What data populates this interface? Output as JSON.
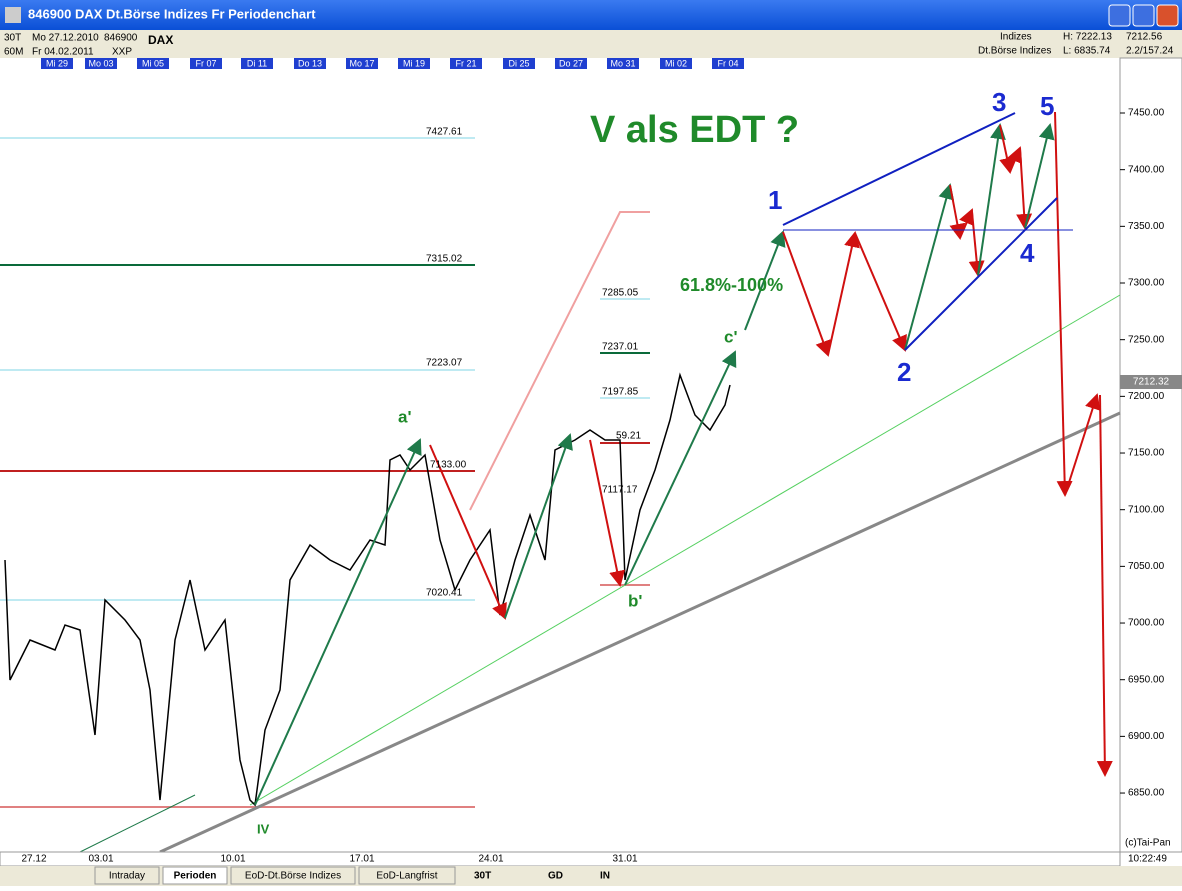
{
  "window": {
    "title": "846900 DAX Dt.Börse Indizes Fr Periodenchart"
  },
  "header": {
    "period1": "30T",
    "date1": "Mo 27.12.2010",
    "code": "846900",
    "name": "DAX",
    "period2": "60M",
    "date2": "Fr 04.02.2011",
    "exchange": "XXP",
    "group": "Indizes",
    "market": "Dt.Börse Indizes",
    "high": "H: 7222.13",
    "low": "L: 6835.74",
    "last": "7212.56",
    "change": "2.2/157.24"
  },
  "date_strip": [
    "Mi 29",
    "Mo 03",
    "Mi 05",
    "Fr 07",
    "Di 11",
    "Do 13",
    "Mo 17",
    "Mi 19",
    "Fr 21",
    "Di 25",
    "Do 27",
    "Mo 31",
    "Mi 02",
    "Fr 04"
  ],
  "price_axis": [
    "7450.00",
    "7400.00",
    "7350.00",
    "7300.00",
    "7250.00",
    "7200.00",
    "7150.00",
    "7100.00",
    "7050.00",
    "7000.00",
    "6950.00",
    "6900.00",
    "6850.00"
  ],
  "current_price": "7212.32",
  "levels": [
    "7427.61",
    "7315.02",
    "7223.07",
    "7133.00",
    "7020.41",
    "7285.05",
    "7237.01",
    "7197.85",
    "59.21",
    "7117.17"
  ],
  "annotations": {
    "title": "V als EDT ?",
    "fib": "61.8%-100%",
    "w1": "1",
    "w2": "2",
    "w3": "3",
    "w4": "4",
    "w5": "5",
    "a": "a'",
    "b": "b'",
    "c": "c'",
    "iv": "IV"
  },
  "time_axis": [
    "27.12",
    "03.01",
    "10.01",
    "17.01",
    "24.01",
    "31.01"
  ],
  "copyright": "(c)Tai-Pan",
  "clock": "10:22:49",
  "tabs": [
    "Intraday",
    "Perioden",
    "EoD-Dt.Börse Indizes",
    "EoD-Langfrist"
  ],
  "toolbar": [
    "30T",
    "GD",
    "IN"
  ]
}
